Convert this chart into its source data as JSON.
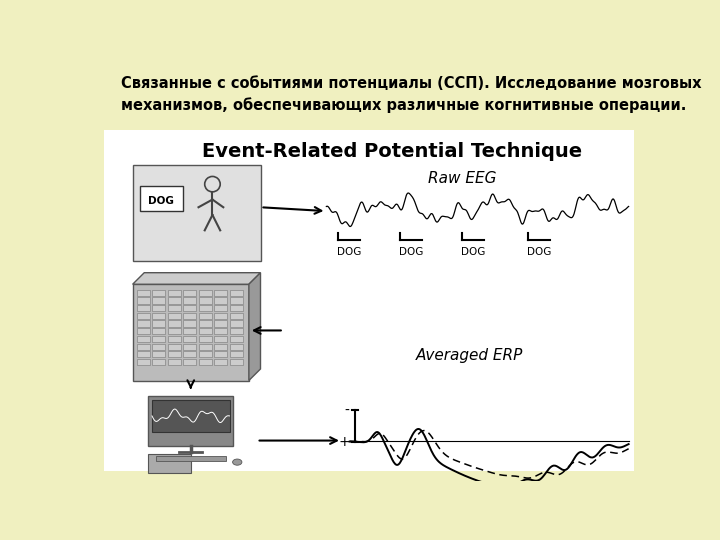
{
  "bg_color": "#f0f0c0",
  "content_bg": "#ffffff",
  "title_ru": "Связанные с событиями потенциалы (ССП). Исследование мозговых\nмеханизмов, обеспечивающих различные когнитивные операции.",
  "title_en": "Event-Related Potential Technique",
  "label_raw_eeg": "Raw EEG",
  "label_avg_erp": "Averaged ERP",
  "dog_labels": [
    "DOG",
    "DOG",
    "DOG",
    "DOG"
  ],
  "minus_label": "-",
  "plus_label": "+"
}
